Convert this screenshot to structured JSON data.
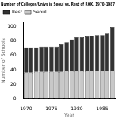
{
  "chart_data": {
    "type": "bar",
    "title": "Number of Colleges/Univs in Seoul vs. Rest of ROK, 1970–1987",
    "xlabel": "Year",
    "ylabel": "Number of Schools",
    "categories": [
      "1970",
      null,
      null,
      null,
      null,
      "1975",
      null,
      null,
      null,
      null,
      "1980",
      null,
      null,
      null,
      null,
      "1985",
      null,
      null
    ],
    "series": [
      {
        "name": "Seoul",
        "color": "#c8c8c8",
        "values": [
          36,
          36,
          37,
          37,
          37,
          37,
          37,
          37,
          38,
          38,
          38,
          38,
          38,
          39,
          39,
          39,
          39,
          39
        ]
      },
      {
        "name": "Rest",
        "color": "#333333",
        "values": [
          35,
          35,
          34,
          35,
          35,
          35,
          35,
          38,
          40,
          44,
          47,
          47,
          48,
          48,
          49,
          49,
          51,
          60
        ]
      }
    ],
    "stacked": true,
    "ylim": [
      0,
      105
    ],
    "yticks": [
      0,
      20,
      40,
      60,
      80,
      100
    ],
    "grid": false,
    "legend": "upper left"
  }
}
